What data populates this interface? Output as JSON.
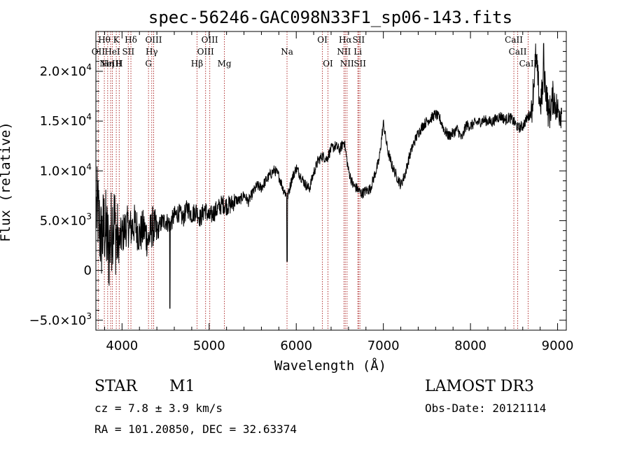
{
  "chart_data": {
    "type": "line",
    "title": "spec-56246-GAC098N33F1_sp06-143.fits",
    "xlabel": "Wavelength (Å)",
    "ylabel": "Flux (relative)",
    "xlim": [
      3700,
      9100
    ],
    "ylim": [
      -6000,
      24000
    ],
    "x_ticks": [
      {
        "value": 4000,
        "label": "4000"
      },
      {
        "value": 5000,
        "label": "5000"
      },
      {
        "value": 6000,
        "label": "6000"
      },
      {
        "value": 7000,
        "label": "7000"
      },
      {
        "value": 8000,
        "label": "8000"
      },
      {
        "value": 9000,
        "label": "9000"
      }
    ],
    "y_ticks": [
      {
        "value": -5000,
        "mant": "−5.0×10",
        "exp": "3"
      },
      {
        "value": 0,
        "mant": "0",
        "exp": ""
      },
      {
        "value": 5000,
        "mant": "5.0×10",
        "exp": "3"
      },
      {
        "value": 10000,
        "mant": "1.0×10",
        "exp": "4"
      },
      {
        "value": 15000,
        "mant": "1.5×10",
        "exp": "4"
      },
      {
        "value": 20000,
        "mant": "2.0×10",
        "exp": "4"
      }
    ],
    "spectrum": {
      "x": [
        3720,
        3760,
        3800,
        3850,
        3900,
        3950,
        4000,
        4050,
        4100,
        4150,
        4200,
        4250,
        4300,
        4350,
        4400,
        4450,
        4500,
        4550,
        4600,
        4650,
        4700,
        4750,
        4800,
        4850,
        4900,
        4950,
        5000,
        5050,
        5100,
        5150,
        5200,
        5250,
        5300,
        5350,
        5400,
        5450,
        5500,
        5550,
        5600,
        5650,
        5700,
        5750,
        5800,
        5850,
        5900,
        5950,
        6000,
        6050,
        6100,
        6150,
        6200,
        6250,
        6300,
        6350,
        6400,
        6450,
        6500,
        6550,
        6600,
        6650,
        6700,
        6750,
        6800,
        6850,
        6900,
        6950,
        7000,
        7050,
        7100,
        7150,
        7200,
        7250,
        7300,
        7350,
        7400,
        7450,
        7500,
        7550,
        7600,
        7650,
        7700,
        7750,
        7800,
        7850,
        7900,
        7950,
        8000,
        8050,
        8100,
        8150,
        8200,
        8250,
        8300,
        8350,
        8400,
        8450,
        8500,
        8550,
        8600,
        8650,
        8700,
        8750,
        8800,
        8850,
        8900,
        8950,
        9000
      ],
      "y": [
        6000,
        3000,
        4500,
        2000,
        5500,
        2500,
        3500,
        4500,
        4200,
        4700,
        3500,
        4200,
        3000,
        4500,
        3800,
        4800,
        5000,
        4600,
        5500,
        5800,
        5200,
        6300,
        5600,
        6000,
        5200,
        6200,
        5300,
        5800,
        6200,
        6700,
        6500,
        6600,
        7100,
        7000,
        7600,
        6900,
        7800,
        8500,
        8300,
        9000,
        9600,
        10100,
        9500,
        8200,
        7400,
        9200,
        10300,
        9500,
        8700,
        8200,
        9800,
        11000,
        11500,
        11200,
        12200,
        12500,
        12100,
        13000,
        10000,
        8600,
        8200,
        7700,
        8000,
        8200,
        9600,
        11000,
        14800,
        12000,
        10500,
        9500,
        8600,
        9700,
        11500,
        12800,
        13800,
        14500,
        15000,
        15300,
        15700,
        15200,
        14100,
        13500,
        13800,
        14200,
        13200,
        14600,
        14500,
        14800,
        14900,
        15100,
        15000,
        14900,
        15300,
        15500,
        15100,
        15400,
        14900,
        14300,
        14500,
        15300,
        15900,
        21500,
        16500,
        19500,
        15500,
        17500,
        16000
      ],
      "features": [
        {
          "x": 4550,
          "y": -3800
        },
        {
          "x": 5895,
          "y": 900
        },
        {
          "x": 8840,
          "y": 22800
        }
      ]
    },
    "lines": [
      {
        "wl": 3797,
        "label": "Hθ",
        "row": 0
      },
      {
        "wl": 3727,
        "label": "OII",
        "row": 1
      },
      {
        "wl": 3835,
        "label": "Hη",
        "row": 2
      },
      {
        "wl": 3869,
        "label": "NeIII",
        "row": 2
      },
      {
        "wl": 3889,
        "label": "HeI",
        "row": 1
      },
      {
        "wl": 3934,
        "label": "K",
        "row": 0
      },
      {
        "wl": 3968,
        "label": "H",
        "row": 2
      },
      {
        "wl": 4072,
        "label": "SII",
        "row": 1
      },
      {
        "wl": 4102,
        "label": "Hδ",
        "row": 0
      },
      {
        "wl": 4304,
        "label": "G",
        "row": 2
      },
      {
        "wl": 4341,
        "label": "Hγ",
        "row": 1
      },
      {
        "wl": 4363,
        "label": "OIII",
        "row": 0
      },
      {
        "wl": 4861,
        "label": "Hβ",
        "row": 2
      },
      {
        "wl": 4959,
        "label": "OIII",
        "row": 1
      },
      {
        "wl": 5007,
        "label": "OIII",
        "row": 0
      },
      {
        "wl": 5175,
        "label": "Mg",
        "row": 2
      },
      {
        "wl": 5894,
        "label": "Na",
        "row": 1
      },
      {
        "wl": 6300,
        "label": "OI",
        "row": 0
      },
      {
        "wl": 6364,
        "label": "OI",
        "row": 2
      },
      {
        "wl": 6548,
        "label": "NII",
        "row": 1
      },
      {
        "wl": 6563,
        "label": "Hα",
        "row": 0
      },
      {
        "wl": 6583,
        "label": "NII",
        "row": 2
      },
      {
        "wl": 6707,
        "label": "Li",
        "row": 1
      },
      {
        "wl": 6716,
        "label": "SII",
        "row": 0
      },
      {
        "wl": 6731,
        "label": "SII",
        "row": 2
      },
      {
        "wl": 8498,
        "label": "CaII",
        "row": 0
      },
      {
        "wl": 8542,
        "label": "CaII",
        "row": 1
      },
      {
        "wl": 8662,
        "label": "CaII",
        "row": 2
      }
    ]
  },
  "info": {
    "object_class": "STAR",
    "subclass": "M1",
    "cz": "cz = 7.8 ± 3.9 km/s",
    "coords": "RA = 101.20850, DEC =  32.63374",
    "survey": "LAMOST DR3",
    "obs_date": "Obs-Date: 20121114"
  },
  "colors": {
    "line_marker": "#b03030",
    "spectrum": "#000000"
  }
}
